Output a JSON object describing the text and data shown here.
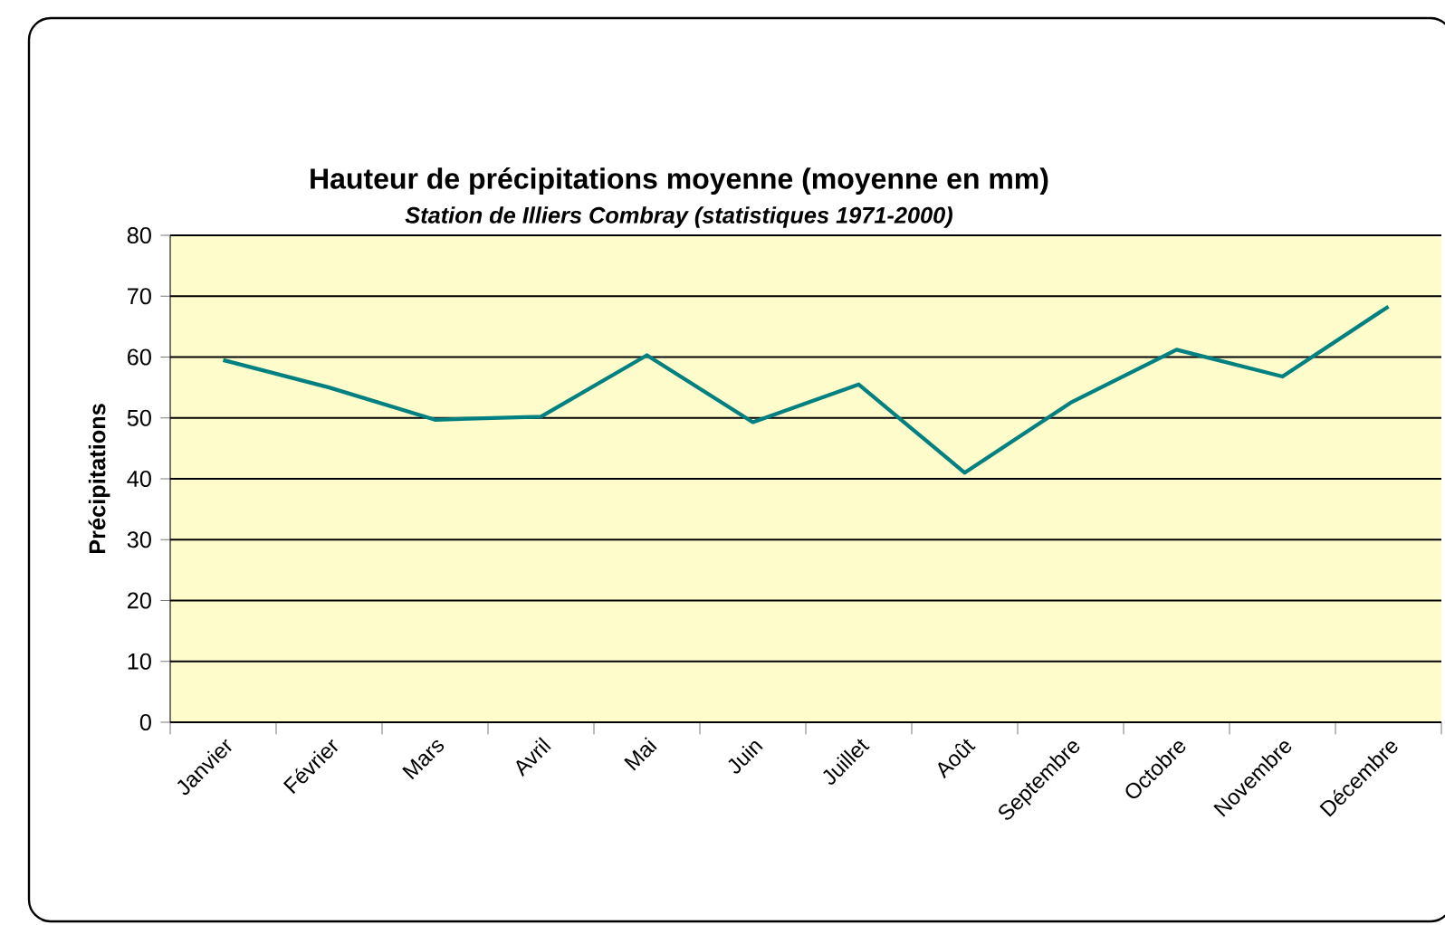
{
  "chart_data": {
    "type": "line",
    "title": "Hauteur de précipitations moyenne (moyenne en mm)",
    "subtitle": "Station de Illiers Combray (statistiques 1971-2000)",
    "ylabel": "Précipitations",
    "categories": [
      "Janvier",
      "Février",
      "Mars",
      "Avril",
      "Mai",
      "Juin",
      "Juillet",
      "Août",
      "Septembre",
      "Octobre",
      "Novembre",
      "Décembre"
    ],
    "series": [
      {
        "color": "#008080",
        "values": [
          59.5,
          55,
          49.7,
          50.2,
          60.3,
          49.3,
          55.5,
          41,
          52.5,
          61.2,
          56.8,
          68.3
        ]
      }
    ],
    "ylim": [
      0,
      80
    ],
    "yticks": [
      0,
      10,
      20,
      30,
      40,
      50,
      60,
      70,
      80
    ],
    "grid": "y",
    "marker": "none",
    "line_style": "solid"
  }
}
